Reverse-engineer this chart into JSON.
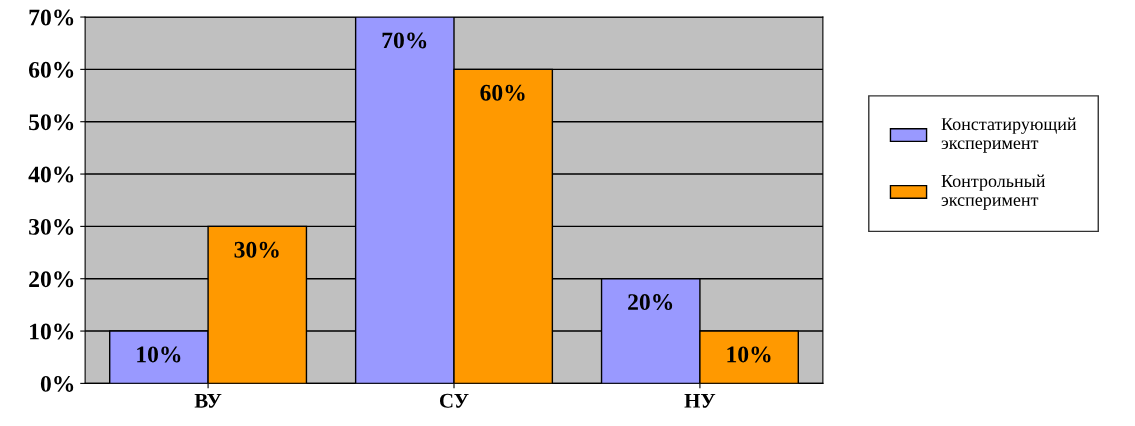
{
  "chart_data": {
    "type": "bar",
    "categories": [
      "ВУ",
      "СУ",
      "НУ"
    ],
    "series": [
      {
        "name": "Констатирующий эксперимент",
        "color": "#9999ff",
        "values": [
          10,
          70,
          20
        ],
        "value_labels": [
          "10%",
          "70%",
          "20%"
        ]
      },
      {
        "name": "Контрольный эксперимент",
        "color": "#ff9900",
        "values": [
          30,
          60,
          10
        ],
        "value_labels": [
          "30%",
          "60%",
          "10%"
        ]
      }
    ],
    "ylim": [
      0,
      70
    ],
    "yticks": [
      {
        "value": 0,
        "label": "0%"
      },
      {
        "value": 10,
        "label": "10%"
      },
      {
        "value": 20,
        "label": "20%"
      },
      {
        "value": 30,
        "label": "30%"
      },
      {
        "value": 40,
        "label": "40%"
      },
      {
        "value": 50,
        "label": "50%"
      },
      {
        "value": 60,
        "label": "60%"
      },
      {
        "value": 70,
        "label": "70%"
      }
    ],
    "grid": "y",
    "legend": "right"
  }
}
